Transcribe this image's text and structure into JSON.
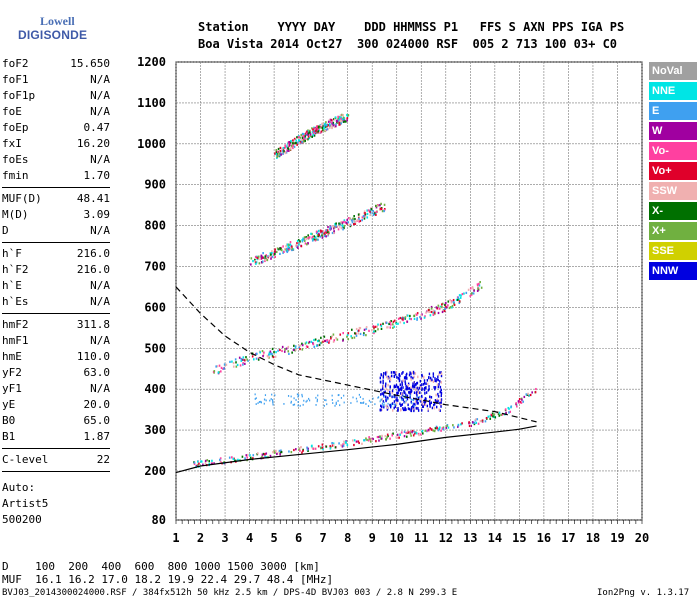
{
  "logo": {
    "line1": "Lowell",
    "line2": "DIGISONDE"
  },
  "header": {
    "row1": "Station    YYYY DAY    DDD HHMMSS P1   FFS S AXN PPS IGA PS",
    "row2": "Boa Vista 2014 Oct27  300 024000 RSF  005 2 713 100 03+ C0"
  },
  "params": [
    {
      "k": "foF2",
      "v": "15.650"
    },
    {
      "k": "foF1",
      "v": "N/A"
    },
    {
      "k": "foF1p",
      "v": "N/A"
    },
    {
      "k": "foE",
      "v": "N/A"
    },
    {
      "k": "foEp",
      "v": "0.47"
    },
    {
      "k": "fxI",
      "v": "16.20"
    },
    {
      "k": "foEs",
      "v": "N/A"
    },
    {
      "k": "fmin",
      "v": "1.70"
    },
    {
      "sep": true
    },
    {
      "k": "MUF(D)",
      "v": "48.41"
    },
    {
      "k": "M(D)",
      "v": "3.09"
    },
    {
      "k": "D",
      "v": "N/A"
    },
    {
      "sep": true
    },
    {
      "k": "h`F",
      "v": "216.0"
    },
    {
      "k": "h`F2",
      "v": "216.0"
    },
    {
      "k": "h`E",
      "v": "N/A"
    },
    {
      "k": "h`Es",
      "v": "N/A"
    },
    {
      "sep": true
    },
    {
      "k": "hmF2",
      "v": "311.8"
    },
    {
      "k": "hmF1",
      "v": "N/A"
    },
    {
      "k": "hmE",
      "v": "110.0"
    },
    {
      "k": "yF2",
      "v": "63.0"
    },
    {
      "k": "yF1",
      "v": "N/A"
    },
    {
      "k": "yE",
      "v": "20.0"
    },
    {
      "k": "B0",
      "v": "65.0"
    },
    {
      "k": "B1",
      "v": "1.87"
    },
    {
      "sep": true
    },
    {
      "k": "C-level",
      "v": "22"
    },
    {
      "sep": true
    }
  ],
  "auto": [
    "Auto:",
    "Artist5",
    "500200"
  ],
  "legend": [
    {
      "label": "NoVal",
      "color": "#a0a0a0"
    },
    {
      "label": "NNE",
      "color": "#00e5e5"
    },
    {
      "label": "E",
      "color": "#3fa0f0"
    },
    {
      "label": "W",
      "color": "#a000a0"
    },
    {
      "label": "Vo-",
      "color": "#ff40a0"
    },
    {
      "label": "Vo+",
      "color": "#e0002a"
    },
    {
      "label": "SSW",
      "color": "#f0b0b0"
    },
    {
      "label": "X-",
      "color": "#007000"
    },
    {
      "label": "X+",
      "color": "#70b040"
    },
    {
      "label": "SSE",
      "color": "#d0d000"
    },
    {
      "label": "NNW",
      "color": "#0000e0"
    }
  ],
  "bottom": {
    "line1": "D    100  200  400  600  800 1000 1500 3000 [km]",
    "line2": "MUF  16.1 16.2 17.0 18.2 19.9 22.4 29.7 48.4 [MHz]"
  },
  "footer": {
    "left": "BVJ03_2014300024000.RSF / 384fx512h 50 kHz 2.5 km / DPS-4D BVJ03 003 / 2.8 N 299.3 E",
    "right": "Ion2Png v. 1.3.17"
  },
  "chart_data": {
    "type": "scatter",
    "title": "",
    "xlabel": "",
    "ylabel": "",
    "xlim": [
      1,
      20
    ],
    "ylim": [
      80,
      1200
    ],
    "x_ticks": [
      1,
      2,
      3,
      4,
      5,
      6,
      7,
      8,
      9,
      10,
      11,
      12,
      13,
      14,
      15,
      16,
      17,
      18,
      19,
      20
    ],
    "y_ticks": [
      80,
      200,
      300,
      400,
      500,
      600,
      700,
      800,
      900,
      1000,
      1100,
      1200
    ],
    "grid": true,
    "ionogram_traces": [
      {
        "name": "o-trace F2",
        "x": [
          1.7,
          3,
          5,
          7,
          9,
          11,
          13,
          14.5,
          15.7
        ],
        "y": [
          218,
          228,
          245,
          262,
          280,
          298,
          318,
          350,
          405
        ]
      },
      {
        "name": "2-hop",
        "x": [
          2.5,
          4,
          6,
          8,
          10,
          12,
          13.5
        ],
        "y": [
          445,
          480,
          505,
          535,
          565,
          605,
          660
        ]
      },
      {
        "name": "3-hop",
        "x": [
          4,
          6,
          8,
          9.5
        ],
        "y": [
          712,
          760,
          810,
          850
        ]
      },
      {
        "name": "4-hop",
        "x": [
          5,
          6.5,
          8
        ],
        "y": [
          975,
          1030,
          1070
        ]
      },
      {
        "name": "sporadic cloud",
        "x": [
          9.5,
          10.5,
          11.5
        ],
        "y": [
          400,
          380,
          410
        ]
      }
    ],
    "profile_curve": {
      "x": [
        1,
        2,
        3,
        4,
        6,
        8,
        10,
        12,
        14,
        15,
        15.7
      ],
      "y": [
        196,
        212,
        220,
        228,
        240,
        252,
        265,
        282,
        295,
        302,
        310
      ]
    },
    "dashed_curve": {
      "x": [
        1,
        2,
        3,
        4,
        5,
        6,
        8,
        10,
        12,
        14,
        15.7
      ],
      "y": [
        650,
        585,
        530,
        490,
        460,
        435,
        410,
        385,
        362,
        345,
        320
      ]
    }
  }
}
